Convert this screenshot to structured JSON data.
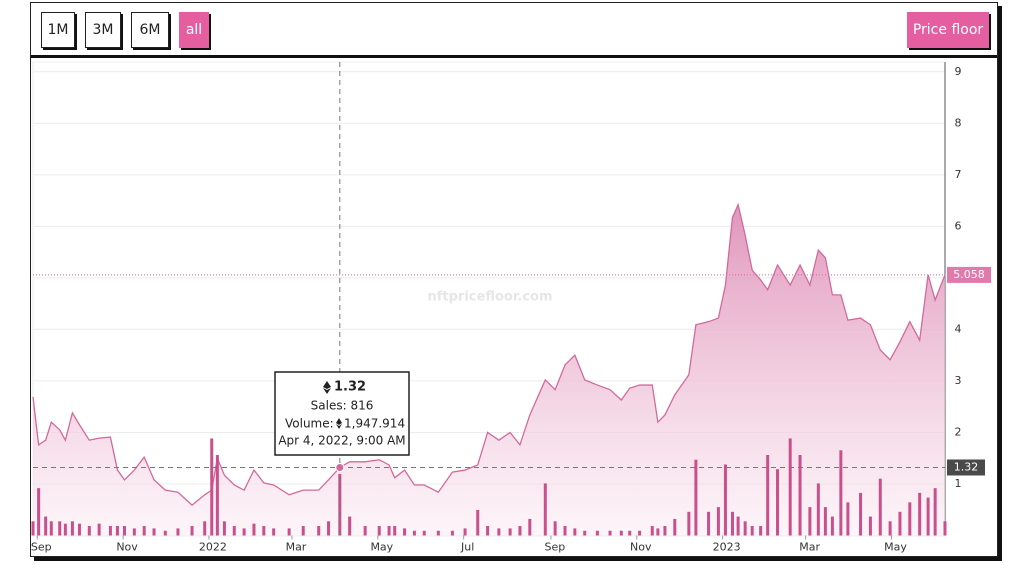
{
  "buttons": [
    "1M",
    "3M",
    "6M",
    "all",
    "Price floor"
  ],
  "watermark": "nftpricefloor.com",
  "chart_data": {
    "type": "area",
    "x": [
      "2021-08-29",
      "2021-09-02",
      "2021-09-07",
      "2021-09-11",
      "2021-09-17",
      "2021-09-21",
      "2021-09-26",
      "2021-10-01",
      "2021-10-08",
      "2021-10-15",
      "2021-10-23",
      "2021-10-28",
      "2021-11-02",
      "2021-11-09",
      "2021-11-16",
      "2021-11-23",
      "2021-12-01",
      "2021-12-10",
      "2021-12-20",
      "2021-12-29",
      "2022-01-03",
      "2022-01-07",
      "2022-01-12",
      "2022-01-19",
      "2022-01-26",
      "2022-02-02",
      "2022-02-09",
      "2022-02-16",
      "2022-02-27",
      "2022-03-09",
      "2022-03-20",
      "2022-03-27",
      "2022-04-04",
      "2022-04-11",
      "2022-04-22",
      "2022-05-02",
      "2022-05-09",
      "2022-05-13",
      "2022-05-20",
      "2022-05-27",
      "2022-06-03",
      "2022-06-13",
      "2022-06-23",
      "2022-07-02",
      "2022-07-11",
      "2022-07-18",
      "2022-07-26",
      "2022-08-03",
      "2022-08-10",
      "2022-08-17",
      "2022-08-28",
      "2022-09-04",
      "2022-09-11",
      "2022-09-18",
      "2022-09-25",
      "2022-10-04",
      "2022-10-13",
      "2022-10-21",
      "2022-10-27",
      "2022-11-03",
      "2022-11-12",
      "2022-11-16",
      "2022-11-21",
      "2022-11-28",
      "2022-12-08",
      "2022-12-13",
      "2022-12-22",
      "2022-12-29",
      "2023-01-03",
      "2023-01-08",
      "2023-01-12",
      "2023-01-17",
      "2023-01-22",
      "2023-01-28",
      "2023-02-02",
      "2023-02-09",
      "2023-02-18",
      "2023-02-25",
      "2023-03-04",
      "2023-03-10",
      "2023-03-15",
      "2023-03-20",
      "2023-03-26",
      "2023-03-31",
      "2023-04-09",
      "2023-04-16",
      "2023-04-23",
      "2023-04-30",
      "2023-05-07",
      "2023-05-14",
      "2023-05-21",
      "2023-05-27",
      "2023-06-01",
      "2023-06-08"
    ],
    "series": [
      {
        "type": "area",
        "color": "#d26a9c",
        "values": [
          2.69,
          1.76,
          1.85,
          2.2,
          2.05,
          1.85,
          2.38,
          2.15,
          1.85,
          1.89,
          1.91,
          1.27,
          1.08,
          1.27,
          1.52,
          1.08,
          0.88,
          0.84,
          0.59,
          0.79,
          0.88,
          1.5,
          1.17,
          0.98,
          0.88,
          1.27,
          1.02,
          0.98,
          0.79,
          0.88,
          0.88,
          1.08,
          1.32,
          1.43,
          1.43,
          1.47,
          1.37,
          1.12,
          1.27,
          0.98,
          0.98,
          0.84,
          1.23,
          1.27,
          1.37,
          2.0,
          1.85,
          2.0,
          1.76,
          2.34,
          3.02,
          2.83,
          3.31,
          3.5,
          3.02,
          2.92,
          2.83,
          2.63,
          2.86,
          2.92,
          2.92,
          2.2,
          2.34,
          2.73,
          3.12,
          4.09,
          4.15,
          4.22,
          4.86,
          6.17,
          6.42,
          5.83,
          5.15,
          4.96,
          4.77,
          5.25,
          4.86,
          5.25,
          4.86,
          5.54,
          5.39,
          4.67,
          4.67,
          4.18,
          4.22,
          4.09,
          3.6,
          3.41,
          3.76,
          4.15,
          3.79,
          5.06,
          4.57,
          5.058
        ]
      },
      {
        "type": "bar",
        "axis": "y2",
        "color": "#c9508c",
        "values": [
          3,
          10,
          4,
          3,
          3,
          2.5,
          3,
          2.5,
          2,
          2.5,
          2,
          2,
          2,
          1.5,
          2,
          1.5,
          1,
          1.5,
          2,
          3,
          20.5,
          17,
          3,
          2,
          1.5,
          2.5,
          2,
          1.5,
          1.5,
          2,
          2,
          3,
          13,
          4,
          2,
          2,
          2,
          2,
          1.5,
          1,
          1,
          1,
          1,
          1.5,
          5.4,
          2,
          1.5,
          1.5,
          2,
          3.5,
          11,
          3,
          2,
          1.5,
          1,
          1,
          1,
          1,
          1,
          1,
          2,
          1.5,
          2,
          3.5,
          5,
          16,
          5,
          6,
          15,
          5,
          4,
          3,
          2,
          2,
          17,
          14,
          20.5,
          17,
          6,
          11,
          6,
          4,
          18,
          7,
          9,
          4,
          12,
          3,
          5,
          7,
          9,
          8,
          10,
          3
        ]
      }
    ],
    "xlim": [
      "2021-08-29",
      "2023-06-08"
    ],
    "xticks": [
      {
        "value": "2021-09-01",
        "label": "Sep"
      },
      {
        "value": "2021-11-01",
        "label": "Nov"
      },
      {
        "value": "2022-01-01",
        "label": "2022"
      },
      {
        "value": "2022-03-01",
        "label": "Mar"
      },
      {
        "value": "2022-05-01",
        "label": "May"
      },
      {
        "value": "2022-07-01",
        "label": "Jul"
      },
      {
        "value": "2022-09-01",
        "label": "Sep"
      },
      {
        "value": "2022-11-01",
        "label": "Nov"
      },
      {
        "value": "2023-01-01",
        "label": "2023"
      },
      {
        "value": "2023-03-01",
        "label": "Mar"
      },
      {
        "value": "2023-05-01",
        "label": "May"
      }
    ],
    "ylim": [
      0,
      9.19
    ],
    "yticks": [
      1,
      2,
      3,
      4,
      5,
      6,
      7,
      8,
      9
    ],
    "y2lim": [
      0,
      100
    ],
    "grid": true,
    "tooltip": {
      "date_x": "2022-04-04",
      "price": 1.32,
      "sales": "Sales: 816",
      "volume_label": "Volume:",
      "volume": "1,947.914",
      "date": "Apr 4, 2022, 9:00 AM"
    }
  }
}
